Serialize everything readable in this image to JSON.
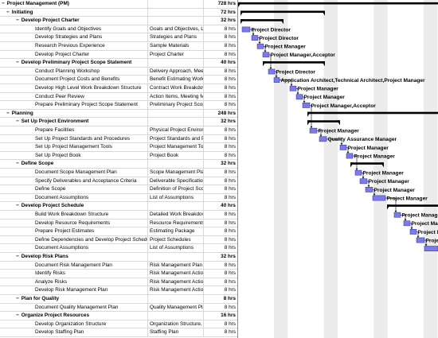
{
  "rows": [
    {
      "level": 0,
      "toggle": "−",
      "summary": true,
      "name": "Project Management (PM)",
      "deliverable": "",
      "work": "728 hrs"
    },
    {
      "level": 1,
      "toggle": "−",
      "summary": true,
      "name": "Initiating",
      "deliverable": "",
      "work": "72 hrs"
    },
    {
      "level": 2,
      "toggle": "−",
      "summary": true,
      "name": "Develop Project Charter",
      "deliverable": "",
      "work": "32 hrs"
    },
    {
      "level": 3,
      "toggle": "",
      "summary": false,
      "name": "Identify Goals and Objectives",
      "deliverable": "Goals and Objectives, Li",
      "work": "8 hrs"
    },
    {
      "level": 3,
      "toggle": "",
      "summary": false,
      "name": "Develop Strategies and Plans",
      "deliverable": "Strategies and Plans",
      "work": "8 hrs"
    },
    {
      "level": 3,
      "toggle": "",
      "summary": false,
      "name": "Research Previous Experience",
      "deliverable": "Sample Materials",
      "work": "8 hrs"
    },
    {
      "level": 3,
      "toggle": "",
      "summary": false,
      "name": "Develop Project Charter",
      "deliverable": "Project Charter",
      "work": "8 hrs"
    },
    {
      "level": 2,
      "toggle": "−",
      "summary": true,
      "name": "Develop Preliminary Project Scope Statement",
      "deliverable": "",
      "work": "40 hrs"
    },
    {
      "level": 3,
      "toggle": "",
      "summary": false,
      "name": "Conduct Planning Workshop",
      "deliverable": "Delivery Approach, Meet",
      "work": "8 hrs"
    },
    {
      "level": 3,
      "toggle": "",
      "summary": false,
      "name": "Document Project Costs and Benefits",
      "deliverable": "Benefit Estimating Works",
      "work": "8 hrs"
    },
    {
      "level": 3,
      "toggle": "",
      "summary": false,
      "name": "Develop High Level Work Breakdown Structure",
      "deliverable": "Contract Work Breakdov",
      "work": "8 hrs"
    },
    {
      "level": 3,
      "toggle": "",
      "summary": false,
      "name": "Conduct Peer Review",
      "deliverable": "Action Items, Meeting Mi",
      "work": "8 hrs"
    },
    {
      "level": 3,
      "toggle": "",
      "summary": false,
      "name": "Prepare Preliminary Project Scope Statement",
      "deliverable": "Preliminary Project Scope",
      "work": "8 hrs"
    },
    {
      "level": 1,
      "toggle": "−",
      "summary": true,
      "name": "Planning",
      "deliverable": "",
      "work": "248 hrs"
    },
    {
      "level": 2,
      "toggle": "−",
      "summary": true,
      "name": "Set Up Project Environment",
      "deliverable": "",
      "work": "32 hrs"
    },
    {
      "level": 3,
      "toggle": "",
      "summary": false,
      "name": "Prepare Facilities",
      "deliverable": "Physical Project Environ",
      "work": "8 hrs"
    },
    {
      "level": 3,
      "toggle": "",
      "summary": false,
      "name": "Set Up Project Standards and Procedures",
      "deliverable": "Project Standards and Pr",
      "work": "8 hrs"
    },
    {
      "level": 3,
      "toggle": "",
      "summary": false,
      "name": "Set Up Project Management Tools",
      "deliverable": "Project Management Too",
      "work": "8 hrs"
    },
    {
      "level": 3,
      "toggle": "",
      "summary": false,
      "name": "Set Up Project Book",
      "deliverable": "Project Book",
      "work": "8 hrs"
    },
    {
      "level": 2,
      "toggle": "−",
      "summary": true,
      "name": "Define Scope",
      "deliverable": "",
      "work": "32 hrs"
    },
    {
      "level": 3,
      "toggle": "",
      "summary": false,
      "name": "Document Scope Management Plan",
      "deliverable": "Scope Management Plan",
      "work": "8 hrs"
    },
    {
      "level": 3,
      "toggle": "",
      "summary": false,
      "name": "Specify Deliverables and Acceptance Criteria",
      "deliverable": "Deliverable Specification",
      "work": "8 hrs"
    },
    {
      "level": 3,
      "toggle": "",
      "summary": false,
      "name": "Define Scope",
      "deliverable": "Definition of Project Scoj",
      "work": "8 hrs"
    },
    {
      "level": 3,
      "toggle": "",
      "summary": false,
      "name": "Document Assumptions",
      "deliverable": "List of Assumptions",
      "work": "8 hrs"
    },
    {
      "level": 2,
      "toggle": "−",
      "summary": true,
      "name": "Develop Project Schedule",
      "deliverable": "",
      "work": "40 hrs"
    },
    {
      "level": 3,
      "toggle": "",
      "summary": false,
      "name": "Build Work Breakdown Structure",
      "deliverable": "Detailed Work Breakdov",
      "work": "8 hrs"
    },
    {
      "level": 3,
      "toggle": "",
      "summary": false,
      "name": "Develop Resource Requirements",
      "deliverable": "Resource Requirements",
      "work": "8 hrs"
    },
    {
      "level": 3,
      "toggle": "",
      "summary": false,
      "name": "Prepare Project Estimates",
      "deliverable": "Estimating Package",
      "work": "8 hrs"
    },
    {
      "level": 3,
      "toggle": "",
      "summary": false,
      "name": "Define Dependencies and Develop Project Schedule",
      "deliverable": "Project Schedules",
      "work": "8 hrs"
    },
    {
      "level": 3,
      "toggle": "",
      "summary": false,
      "name": "Document Assumptions",
      "deliverable": "List of Assumptions",
      "work": "8 hrs"
    },
    {
      "level": 2,
      "toggle": "−",
      "summary": true,
      "name": "Develop Risk Plans",
      "deliverable": "",
      "work": "32 hrs"
    },
    {
      "level": 3,
      "toggle": "",
      "summary": false,
      "name": "Document Risk Management Plan",
      "deliverable": "Risk Management Plan",
      "work": "8 hrs"
    },
    {
      "level": 3,
      "toggle": "",
      "summary": false,
      "name": "Identify Risks",
      "deliverable": "Risk Management Action",
      "work": "8 hrs"
    },
    {
      "level": 3,
      "toggle": "",
      "summary": false,
      "name": "Analyze Risks",
      "deliverable": "Risk Management Action",
      "work": "8 hrs"
    },
    {
      "level": 3,
      "toggle": "",
      "summary": false,
      "name": "Develop Risk Management Plan",
      "deliverable": "Risk Management Action",
      "work": "8 hrs"
    },
    {
      "level": 2,
      "toggle": "−",
      "summary": true,
      "name": "Plan for Quality",
      "deliverable": "",
      "work": "8 hrs"
    },
    {
      "level": 3,
      "toggle": "",
      "summary": false,
      "name": "Document Quality Management Plan",
      "deliverable": "Quality Management Plan",
      "work": "8 hrs"
    },
    {
      "level": 2,
      "toggle": "−",
      "summary": true,
      "name": "Organize Project Resources",
      "deliverable": "",
      "work": "16 hrs"
    },
    {
      "level": 3,
      "toggle": "",
      "summary": false,
      "name": "Develop Organization Structure",
      "deliverable": "Organization Structure, F",
      "work": "8 hrs"
    },
    {
      "level": 3,
      "toggle": "",
      "summary": false,
      "name": "Develop Staffing Plan",
      "deliverable": "Staffing Plan",
      "work": "8 hrs"
    }
  ],
  "resources": [
    "",
    "",
    "",
    "Project Director",
    "Project Director",
    "Project Manager",
    "Project Manager,Acceptor",
    "",
    "Project Director",
    "Application Architect,Technical Architect,Project Manager",
    "Project Manager",
    "Project Manager",
    "Project Manager,Acceptor",
    "",
    "",
    "Project Manager",
    "Quality Assurance Manager",
    "Project Manager",
    "Project Manager",
    "",
    "Project Manager",
    "Project Manager",
    "Project Manager",
    "Project Manager",
    "",
    "Project Manager",
    "Project Manager",
    "Project Manager",
    "Project Manager",
    "Project Manager",
    "",
    "",
    "",
    "",
    "",
    "",
    "",
    "",
    "",
    ""
  ],
  "colors": {
    "bar": "#7b7bea",
    "bar_border": "#2b2b9c",
    "summary": "#000000",
    "weekend": "#ececec",
    "link": "#000000"
  }
}
